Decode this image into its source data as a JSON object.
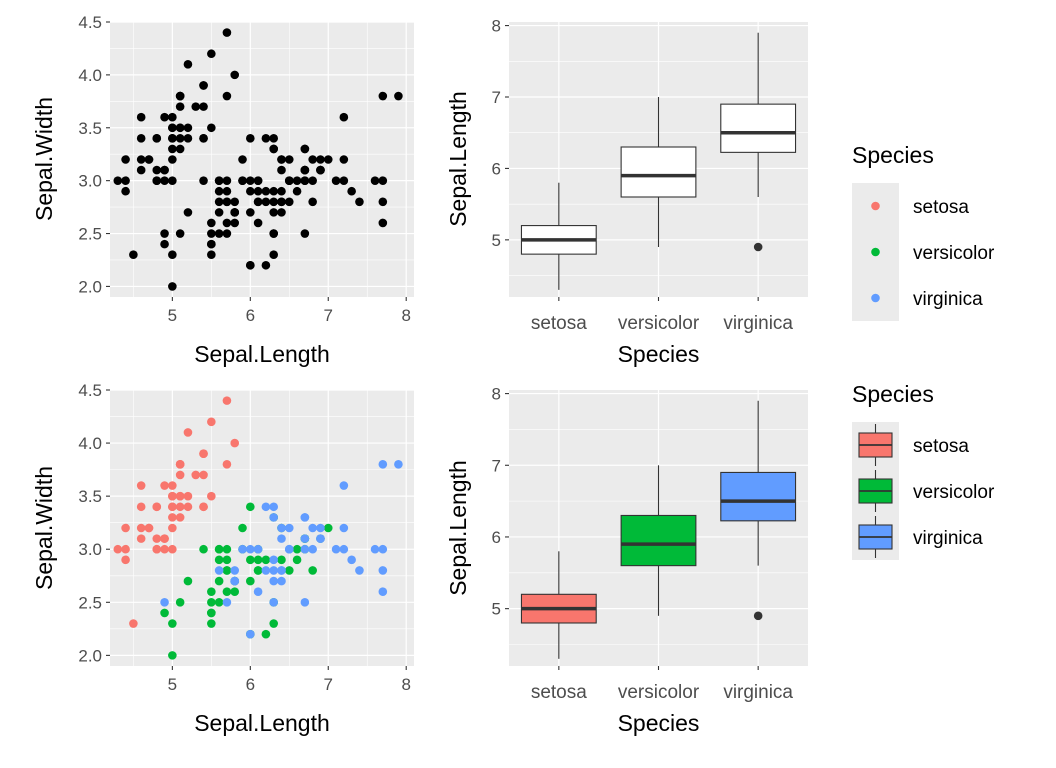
{
  "chart_data": [
    {
      "type": "scatter",
      "xlabel": "Sepal.Length",
      "ylabel": "Sepal.Width",
      "xlim": [
        4.2,
        8.1
      ],
      "ylim": [
        1.9,
        4.5
      ],
      "xticks": [
        5,
        6,
        7,
        8
      ],
      "yticks": [
        2.0,
        2.5,
        3.0,
        3.5,
        4.0,
        4.5
      ],
      "grid": true,
      "colored_by_species": false,
      "point_color": "#000000"
    },
    {
      "type": "box",
      "xlabel": "Species",
      "ylabel": "Sepal.Length",
      "categories": [
        "setosa",
        "versicolor",
        "virginica"
      ],
      "ylim": [
        4.2,
        8.05
      ],
      "yticks": [
        5,
        6,
        7,
        8
      ],
      "grid": true,
      "filled": false,
      "boxes": [
        {
          "min": 4.3,
          "q1": 4.8,
          "median": 5.0,
          "q3": 5.2,
          "max": 5.8,
          "outliers": []
        },
        {
          "min": 4.9,
          "q1": 5.6,
          "median": 5.9,
          "q3": 6.3,
          "max": 7.0,
          "outliers": []
        },
        {
          "min": 5.6,
          "q1": 6.225,
          "median": 6.5,
          "q3": 6.9,
          "max": 7.9,
          "outliers": [
            4.9
          ]
        }
      ],
      "legend": {
        "title": "Species",
        "entries": [
          "setosa",
          "versicolor",
          "virginica"
        ],
        "key": "point",
        "placement": "right"
      }
    },
    {
      "type": "scatter",
      "xlabel": "Sepal.Length",
      "ylabel": "Sepal.Width",
      "xlim": [
        4.2,
        8.1
      ],
      "ylim": [
        1.9,
        4.5
      ],
      "xticks": [
        5,
        6,
        7,
        8
      ],
      "yticks": [
        2.0,
        2.5,
        3.0,
        3.5,
        4.0,
        4.5
      ],
      "grid": true,
      "colored_by_species": true
    },
    {
      "type": "box",
      "xlabel": "Species",
      "ylabel": "Sepal.Length",
      "categories": [
        "setosa",
        "versicolor",
        "virginica"
      ],
      "ylim": [
        4.2,
        8.05
      ],
      "yticks": [
        5,
        6,
        7,
        8
      ],
      "grid": true,
      "filled": true,
      "boxes": [
        {
          "min": 4.3,
          "q1": 4.8,
          "median": 5.0,
          "q3": 5.2,
          "max": 5.8,
          "outliers": []
        },
        {
          "min": 4.9,
          "q1": 5.6,
          "median": 5.9,
          "q3": 6.3,
          "max": 7.0,
          "outliers": []
        },
        {
          "min": 5.6,
          "q1": 6.225,
          "median": 6.5,
          "q3": 6.9,
          "max": 7.9,
          "outliers": [
            4.9
          ]
        }
      ],
      "legend": {
        "title": "Species",
        "entries": [
          "setosa",
          "versicolor",
          "virginica"
        ],
        "key": "box",
        "placement": "right"
      }
    }
  ],
  "species_colors": {
    "setosa": "#F8766D",
    "versicolor": "#00BA38",
    "virginica": "#619CFF"
  },
  "iris_points": {
    "setosa": [
      [
        5.1,
        3.5
      ],
      [
        4.9,
        3.0
      ],
      [
        4.7,
        3.2
      ],
      [
        4.6,
        3.1
      ],
      [
        5.0,
        3.6
      ],
      [
        5.4,
        3.9
      ],
      [
        4.6,
        3.4
      ],
      [
        5.0,
        3.4
      ],
      [
        4.4,
        2.9
      ],
      [
        4.9,
        3.1
      ],
      [
        5.4,
        3.7
      ],
      [
        4.8,
        3.4
      ],
      [
        4.8,
        3.0
      ],
      [
        4.3,
        3.0
      ],
      [
        5.8,
        4.0
      ],
      [
        5.7,
        4.4
      ],
      [
        5.4,
        3.9
      ],
      [
        5.1,
        3.5
      ],
      [
        5.7,
        3.8
      ],
      [
        5.1,
        3.8
      ],
      [
        5.4,
        3.4
      ],
      [
        5.1,
        3.7
      ],
      [
        4.6,
        3.6
      ],
      [
        5.1,
        3.3
      ],
      [
        4.8,
        3.4
      ],
      [
        5.0,
        3.0
      ],
      [
        5.0,
        3.4
      ],
      [
        5.2,
        3.5
      ],
      [
        5.2,
        3.4
      ],
      [
        4.7,
        3.2
      ],
      [
        4.8,
        3.1
      ],
      [
        5.4,
        3.4
      ],
      [
        5.2,
        4.1
      ],
      [
        5.5,
        4.2
      ],
      [
        4.9,
        3.1
      ],
      [
        5.0,
        3.2
      ],
      [
        5.5,
        3.5
      ],
      [
        4.9,
        3.6
      ],
      [
        4.4,
        3.0
      ],
      [
        5.1,
        3.4
      ],
      [
        5.0,
        3.5
      ],
      [
        4.5,
        2.3
      ],
      [
        4.4,
        3.2
      ],
      [
        5.0,
        3.5
      ],
      [
        5.1,
        3.8
      ],
      [
        4.8,
        3.0
      ],
      [
        5.1,
        3.8
      ],
      [
        4.6,
        3.2
      ],
      [
        5.3,
        3.7
      ],
      [
        5.0,
        3.3
      ]
    ],
    "versicolor": [
      [
        7.0,
        3.2
      ],
      [
        6.4,
        3.2
      ],
      [
        6.9,
        3.1
      ],
      [
        5.5,
        2.3
      ],
      [
        6.5,
        2.8
      ],
      [
        5.7,
        2.8
      ],
      [
        6.3,
        3.3
      ],
      [
        4.9,
        2.4
      ],
      [
        6.6,
        2.9
      ],
      [
        5.2,
        2.7
      ],
      [
        5.0,
        2.0
      ],
      [
        5.9,
        3.0
      ],
      [
        6.0,
        2.2
      ],
      [
        6.1,
        2.9
      ],
      [
        5.6,
        2.9
      ],
      [
        6.7,
        3.1
      ],
      [
        5.6,
        3.0
      ],
      [
        5.8,
        2.7
      ],
      [
        6.2,
        2.2
      ],
      [
        5.6,
        2.5
      ],
      [
        5.9,
        3.2
      ],
      [
        6.1,
        2.8
      ],
      [
        6.3,
        2.5
      ],
      [
        6.1,
        2.8
      ],
      [
        6.4,
        2.9
      ],
      [
        6.6,
        3.0
      ],
      [
        6.8,
        2.8
      ],
      [
        6.7,
        3.0
      ],
      [
        6.0,
        2.9
      ],
      [
        5.7,
        2.6
      ],
      [
        5.5,
        2.4
      ],
      [
        5.5,
        2.4
      ],
      [
        5.8,
        2.7
      ],
      [
        6.0,
        2.7
      ],
      [
        5.4,
        3.0
      ],
      [
        6.0,
        3.4
      ],
      [
        6.7,
        3.1
      ],
      [
        6.3,
        2.3
      ],
      [
        5.6,
        3.0
      ],
      [
        5.5,
        2.5
      ],
      [
        5.5,
        2.6
      ],
      [
        6.1,
        3.0
      ],
      [
        5.8,
        2.6
      ],
      [
        5.0,
        2.3
      ],
      [
        5.6,
        2.7
      ],
      [
        5.7,
        3.0
      ],
      [
        5.7,
        2.9
      ],
      [
        6.2,
        2.9
      ],
      [
        5.1,
        2.5
      ],
      [
        5.7,
        2.8
      ]
    ],
    "virginica": [
      [
        6.3,
        3.3
      ],
      [
        5.8,
        2.7
      ],
      [
        7.1,
        3.0
      ],
      [
        6.3,
        2.9
      ],
      [
        6.5,
        3.0
      ],
      [
        7.6,
        3.0
      ],
      [
        4.9,
        2.5
      ],
      [
        7.3,
        2.9
      ],
      [
        6.7,
        2.5
      ],
      [
        7.2,
        3.6
      ],
      [
        6.5,
        3.2
      ],
      [
        6.4,
        2.7
      ],
      [
        6.8,
        3.0
      ],
      [
        5.7,
        2.5
      ],
      [
        5.8,
        2.8
      ],
      [
        6.4,
        3.2
      ],
      [
        6.5,
        3.0
      ],
      [
        7.7,
        3.8
      ],
      [
        7.7,
        2.6
      ],
      [
        6.0,
        2.2
      ],
      [
        6.9,
        3.2
      ],
      [
        5.6,
        2.8
      ],
      [
        7.7,
        2.8
      ],
      [
        6.3,
        2.7
      ],
      [
        6.7,
        3.3
      ],
      [
        7.2,
        3.2
      ],
      [
        6.2,
        2.8
      ],
      [
        6.1,
        3.0
      ],
      [
        6.4,
        2.8
      ],
      [
        7.2,
        3.0
      ],
      [
        7.4,
        2.8
      ],
      [
        7.9,
        3.8
      ],
      [
        6.4,
        2.8
      ],
      [
        6.3,
        2.8
      ],
      [
        6.1,
        2.6
      ],
      [
        7.7,
        3.0
      ],
      [
        6.3,
        3.4
      ],
      [
        6.4,
        3.1
      ],
      [
        6.0,
        3.0
      ],
      [
        6.9,
        3.1
      ],
      [
        6.7,
        3.1
      ],
      [
        6.9,
        3.1
      ],
      [
        5.8,
        2.7
      ],
      [
        6.8,
        3.2
      ],
      [
        6.7,
        3.3
      ],
      [
        6.7,
        3.0
      ],
      [
        6.3,
        2.5
      ],
      [
        6.5,
        3.0
      ],
      [
        6.2,
        3.4
      ],
      [
        5.9,
        3.0
      ]
    ]
  }
}
